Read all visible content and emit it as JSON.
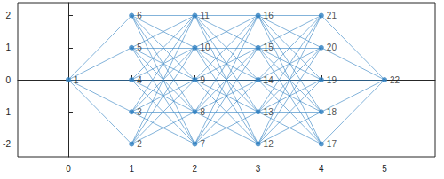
{
  "chart_data": {
    "type": "network",
    "xlim": [
      -0.8,
      5.8
    ],
    "ylim": [
      -2.4,
      2.4
    ],
    "xticks": [
      0,
      1,
      2,
      3,
      4,
      5
    ],
    "yticks": [
      -2,
      -1,
      0,
      1,
      2
    ],
    "grid": false,
    "color": "#2f7fc1",
    "marker": "circle",
    "nodes": [
      {
        "label": "1",
        "x": 0,
        "y": 0
      },
      {
        "label": "2",
        "x": 1,
        "y": -2
      },
      {
        "label": "3",
        "x": 1,
        "y": -1
      },
      {
        "label": "4",
        "x": 1,
        "y": 0
      },
      {
        "label": "5",
        "x": 1,
        "y": 1
      },
      {
        "label": "6",
        "x": 1,
        "y": 2
      },
      {
        "label": "7",
        "x": 2,
        "y": -2
      },
      {
        "label": "8",
        "x": 2,
        "y": -1
      },
      {
        "label": "9",
        "x": 2,
        "y": 0
      },
      {
        "label": "10",
        "x": 2,
        "y": 1
      },
      {
        "label": "11",
        "x": 2,
        "y": 2
      },
      {
        "label": "12",
        "x": 3,
        "y": -2
      },
      {
        "label": "13",
        "x": 3,
        "y": -1
      },
      {
        "label": "14",
        "x": 3,
        "y": 0
      },
      {
        "label": "15",
        "x": 3,
        "y": 1
      },
      {
        "label": "16",
        "x": 3,
        "y": 2
      },
      {
        "label": "17",
        "x": 4,
        "y": -2
      },
      {
        "label": "18",
        "x": 4,
        "y": -1
      },
      {
        "label": "19",
        "x": 4,
        "y": 0
      },
      {
        "label": "20",
        "x": 4,
        "y": 1
      },
      {
        "label": "21",
        "x": 4,
        "y": 2
      },
      {
        "label": "22",
        "x": 5,
        "y": 0
      }
    ],
    "edges": [
      [
        "1",
        "2"
      ],
      [
        "1",
        "3"
      ],
      [
        "1",
        "4"
      ],
      [
        "1",
        "5"
      ],
      [
        "1",
        "6"
      ],
      [
        "2",
        "7"
      ],
      [
        "2",
        "8"
      ],
      [
        "2",
        "9"
      ],
      [
        "2",
        "10"
      ],
      [
        "2",
        "11"
      ],
      [
        "3",
        "7"
      ],
      [
        "3",
        "8"
      ],
      [
        "3",
        "9"
      ],
      [
        "3",
        "10"
      ],
      [
        "3",
        "11"
      ],
      [
        "4",
        "7"
      ],
      [
        "4",
        "8"
      ],
      [
        "4",
        "9"
      ],
      [
        "4",
        "10"
      ],
      [
        "4",
        "11"
      ],
      [
        "5",
        "7"
      ],
      [
        "5",
        "8"
      ],
      [
        "5",
        "9"
      ],
      [
        "5",
        "10"
      ],
      [
        "5",
        "11"
      ],
      [
        "6",
        "7"
      ],
      [
        "6",
        "8"
      ],
      [
        "6",
        "9"
      ],
      [
        "6",
        "10"
      ],
      [
        "6",
        "11"
      ],
      [
        "7",
        "12"
      ],
      [
        "7",
        "13"
      ],
      [
        "7",
        "14"
      ],
      [
        "7",
        "15"
      ],
      [
        "7",
        "16"
      ],
      [
        "8",
        "12"
      ],
      [
        "8",
        "13"
      ],
      [
        "8",
        "14"
      ],
      [
        "8",
        "15"
      ],
      [
        "8",
        "16"
      ],
      [
        "9",
        "12"
      ],
      [
        "9",
        "13"
      ],
      [
        "9",
        "14"
      ],
      [
        "9",
        "15"
      ],
      [
        "9",
        "16"
      ],
      [
        "10",
        "12"
      ],
      [
        "10",
        "13"
      ],
      [
        "10",
        "14"
      ],
      [
        "10",
        "15"
      ],
      [
        "10",
        "16"
      ],
      [
        "11",
        "12"
      ],
      [
        "11",
        "13"
      ],
      [
        "11",
        "14"
      ],
      [
        "11",
        "15"
      ],
      [
        "11",
        "16"
      ],
      [
        "12",
        "17"
      ],
      [
        "12",
        "18"
      ],
      [
        "12",
        "19"
      ],
      [
        "12",
        "20"
      ],
      [
        "12",
        "21"
      ],
      [
        "13",
        "17"
      ],
      [
        "13",
        "18"
      ],
      [
        "13",
        "19"
      ],
      [
        "13",
        "20"
      ],
      [
        "13",
        "21"
      ],
      [
        "14",
        "17"
      ],
      [
        "14",
        "18"
      ],
      [
        "14",
        "19"
      ],
      [
        "14",
        "20"
      ],
      [
        "14",
        "21"
      ],
      [
        "15",
        "17"
      ],
      [
        "15",
        "18"
      ],
      [
        "15",
        "19"
      ],
      [
        "15",
        "20"
      ],
      [
        "15",
        "21"
      ],
      [
        "16",
        "17"
      ],
      [
        "16",
        "18"
      ],
      [
        "16",
        "19"
      ],
      [
        "16",
        "20"
      ],
      [
        "16",
        "21"
      ],
      [
        "17",
        "22"
      ],
      [
        "18",
        "22"
      ],
      [
        "19",
        "22"
      ],
      [
        "20",
        "22"
      ],
      [
        "21",
        "22"
      ]
    ]
  }
}
